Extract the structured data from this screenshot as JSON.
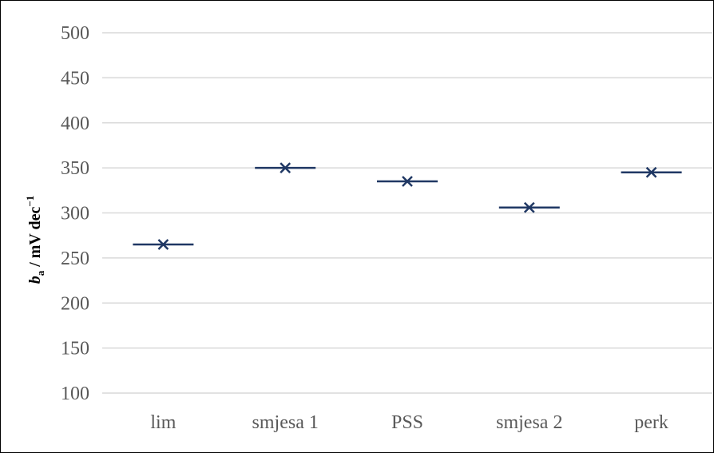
{
  "chart_data": {
    "type": "scatter",
    "categories": [
      "lim",
      "smjesa 1",
      "PSS",
      "smjesa 2",
      "perk"
    ],
    "series": [
      {
        "marker": "dash",
        "values": [
          265,
          350,
          335,
          306,
          345
        ]
      },
      {
        "marker": "x",
        "values": [
          265,
          350,
          335,
          306,
          345
        ]
      }
    ],
    "ylabel": {
      "main": "b",
      "sub": "a",
      "rest": " / mV dec",
      "sup": "−1"
    },
    "ylim": [
      100,
      500
    ],
    "yticks": [
      100,
      150,
      200,
      250,
      300,
      350,
      400,
      450,
      500
    ],
    "grid": true,
    "legend": "none",
    "colors": {
      "marker": "#203864",
      "grid": "#d9d9d9",
      "tick_text": "#595959"
    }
  }
}
